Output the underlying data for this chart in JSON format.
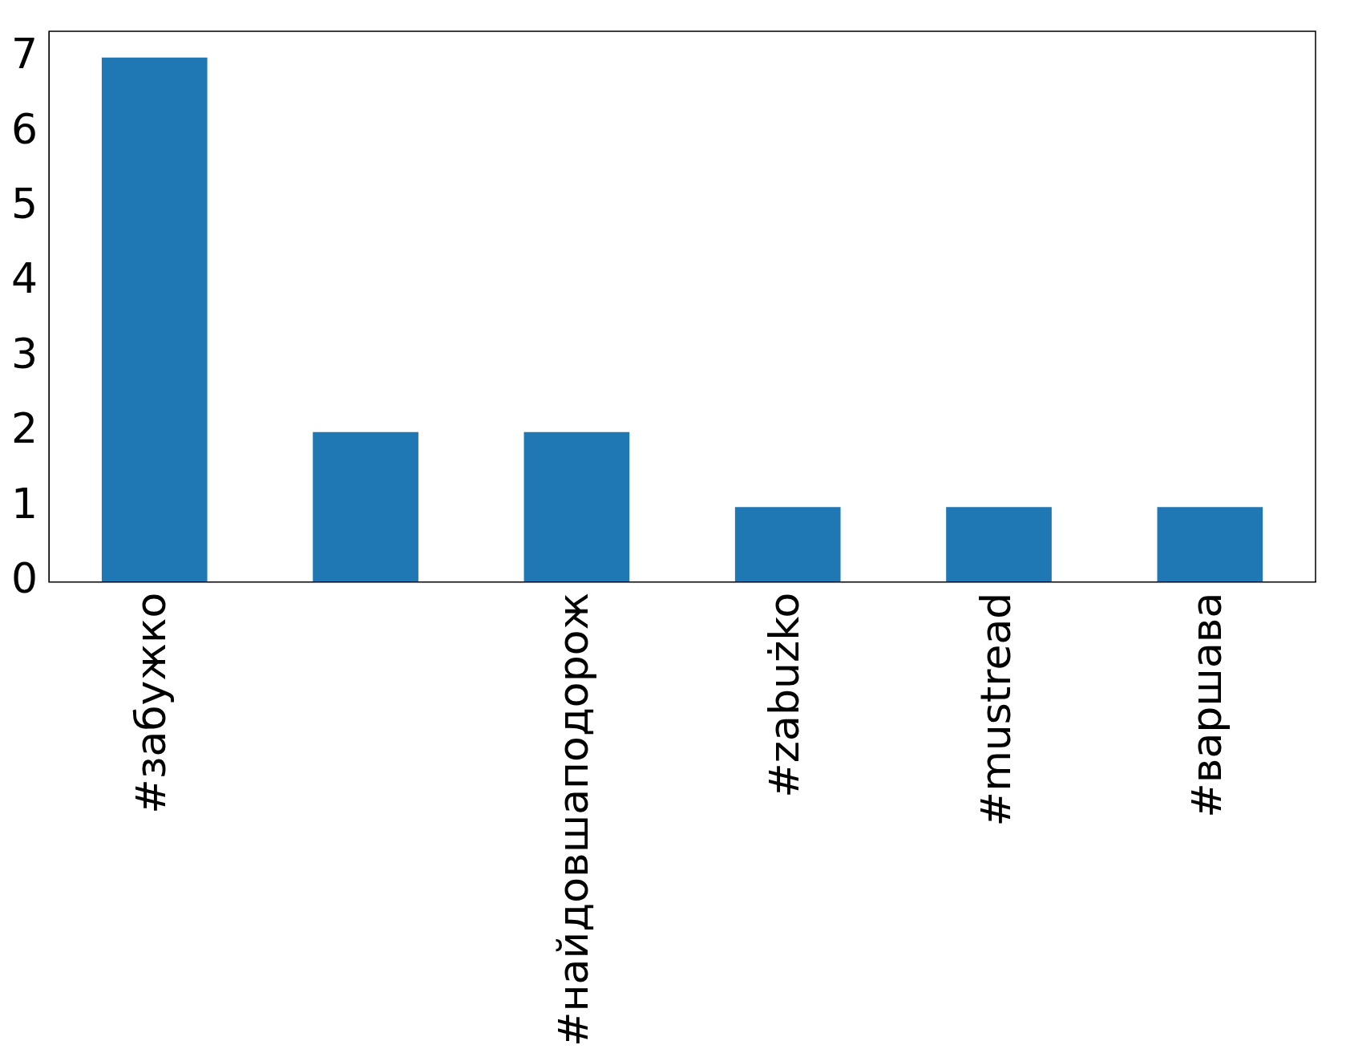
{
  "chart_data": {
    "type": "bar",
    "categories": [
      "#забужко",
      null,
      "#найдовшаподорож",
      "#zabużko",
      "#mustread",
      "#варшава"
    ],
    "values": [
      7,
      2,
      2,
      1,
      1,
      1
    ],
    "color": "#1f77b4",
    "ylim": [
      0,
      7.35
    ],
    "yticks": [
      0,
      1,
      2,
      3,
      4,
      5,
      6,
      7
    ],
    "grid": false,
    "legend": false
  }
}
